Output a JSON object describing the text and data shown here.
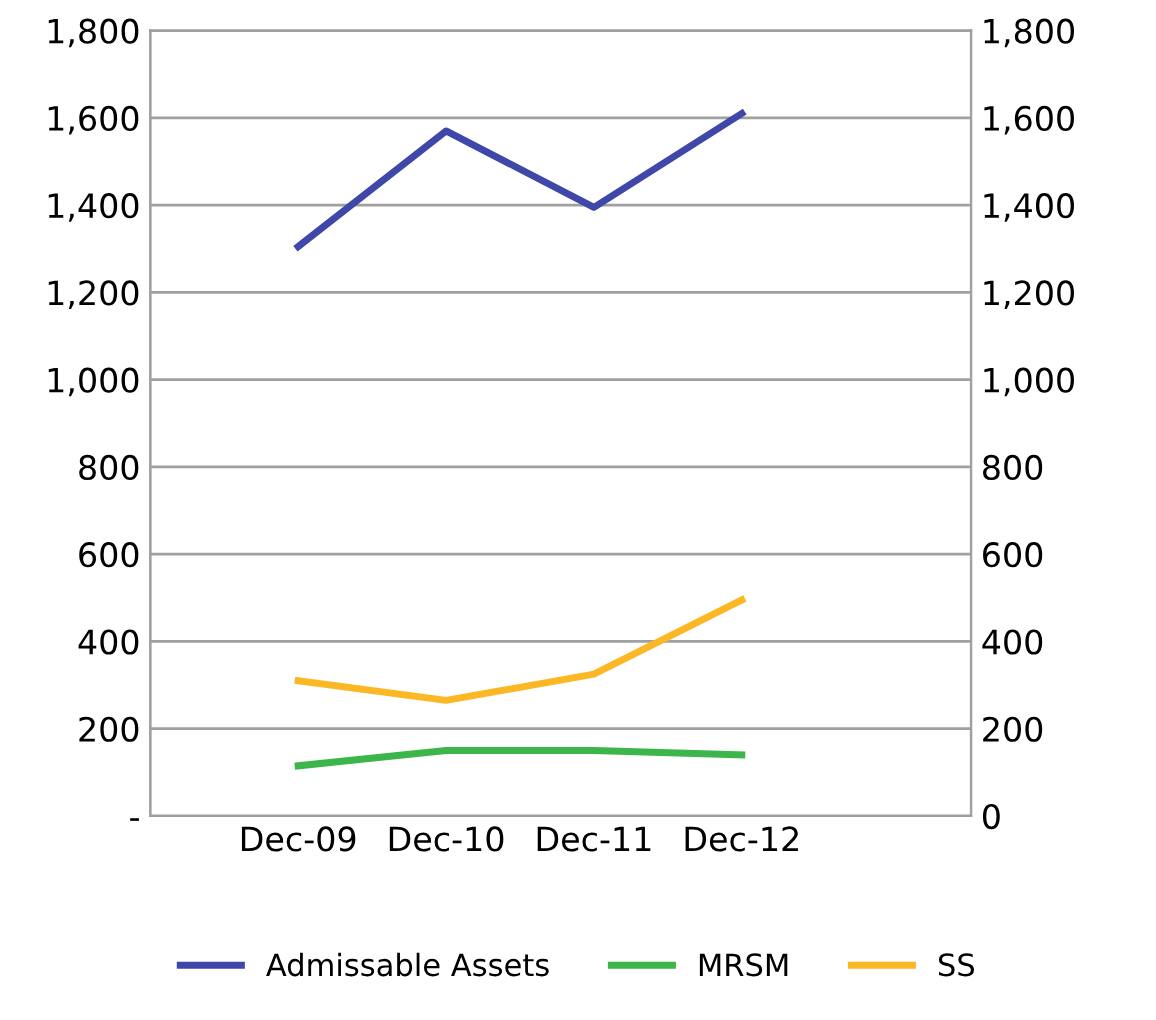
{
  "chart_data": {
    "type": "line",
    "categories": [
      "Dec-09",
      "Dec-10",
      "Dec-11",
      "Dec-12"
    ],
    "series": [
      {
        "name": "Admissable Assets",
        "color": "#3f48a8",
        "values": [
          1305,
          1570,
          1395,
          1610
        ]
      },
      {
        "name": "MRSM",
        "color": "#3cb54a",
        "values": [
          115,
          150,
          150,
          140
        ]
      },
      {
        "name": "SS",
        "color": "#fbb824",
        "values": [
          310,
          265,
          325,
          495
        ]
      }
    ],
    "ylim": [
      0,
      1800
    ],
    "yticks": [
      {
        "value": 0,
        "label": "-"
      },
      {
        "value": 200,
        "label": "200"
      },
      {
        "value": 400,
        "label": "400"
      },
      {
        "value": 600,
        "label": "600"
      },
      {
        "value": 800,
        "label": "800"
      },
      {
        "value": 1000,
        "label": "1,000"
      },
      {
        "value": 1200,
        "label": "1,200"
      },
      {
        "value": 1400,
        "label": "1,400"
      },
      {
        "value": 1600,
        "label": "1,600"
      },
      {
        "value": 1800,
        "label": "1,800"
      }
    ],
    "y2lim": [
      0,
      1800
    ],
    "y2ticks": [
      0,
      {
        "value": 200,
        "label": "200"
      },
      {
        "value": 400,
        "label": "400"
      },
      {
        "value": 600,
        "label": "600"
      },
      {
        "value": 800,
        "label": "800"
      },
      {
        "value": 1000,
        "label": "1,000"
      },
      {
        "value": 1200,
        "label": "1,200"
      },
      {
        "value": 1400,
        "label": "1,400"
      },
      {
        "value": 1600,
        "label": "1,600"
      },
      {
        "value": 1800,
        "label": "1,800"
      }
    ],
    "grid": "y",
    "legend": "bottom",
    "marker": "none",
    "line_style": "solid"
  }
}
